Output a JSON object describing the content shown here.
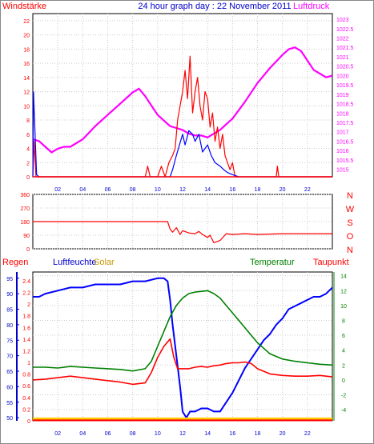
{
  "chart_data": [
    {
      "type": "line",
      "title": "24 hour graph day : 22 November 2011",
      "left_axis_label": "Windstärke",
      "right_axis_label": "Luftdruck",
      "x_ticks": [
        "02",
        "04",
        "06",
        "08",
        "10",
        "12",
        "14",
        "16",
        "18",
        "20",
        "22"
      ],
      "x_range": [
        0,
        24
      ],
      "y_left_ticks": [
        "0",
        "2",
        "4",
        "6",
        "8",
        "10",
        "12",
        "14",
        "16",
        "18",
        "20",
        "22"
      ],
      "y_left_range": [
        0,
        23
      ],
      "y_right_ticks": [
        "1015",
        "1015.5",
        "1016",
        "1016.5",
        "1017",
        "1017.5",
        "1018",
        "1018.5",
        "1019",
        "1019.5",
        "1020",
        "1020.5",
        "1021",
        "1021.5",
        "1022",
        "1022.5",
        "1023"
      ],
      "y_right_range": [
        1014.6,
        1023.3
      ],
      "grid": true,
      "colors": {
        "pressure": "#ff00ff",
        "gust": "#ff0000",
        "wind": "#0000ff"
      },
      "series": [
        {
          "key": "pressure",
          "axis": "right",
          "x": [
            0,
            0.5,
            1,
            1.5,
            2,
            2.5,
            3,
            4,
            5,
            6,
            7,
            8,
            8.5,
            9,
            9.5,
            10,
            10.5,
            11,
            11.5,
            12,
            12.5,
            13,
            13.5,
            14,
            14.5,
            15,
            15.5,
            16,
            17,
            18,
            19,
            20,
            20.5,
            21,
            21.5,
            22,
            22.5,
            23,
            23.5,
            24
          ],
          "y": [
            1016.6,
            1016.5,
            1016.2,
            1015.9,
            1016.1,
            1016.2,
            1016.2,
            1016.6,
            1017.3,
            1017.9,
            1018.5,
            1019.1,
            1019.3,
            1018.9,
            1018.4,
            1017.9,
            1017.6,
            1017.3,
            1017.2,
            1017.1,
            1016.9,
            1016.8,
            1016.8,
            1016.7,
            1016.9,
            1017.1,
            1017.4,
            1017.7,
            1018.6,
            1019.6,
            1020.4,
            1021.1,
            1021.4,
            1021.5,
            1021.3,
            1020.8,
            1020.3,
            1020.1,
            1019.9,
            1020.0
          ]
        },
        {
          "key": "gust",
          "axis": "left",
          "x": [
            0,
            0.1,
            0.25,
            1,
            2,
            4,
            6,
            8,
            9,
            9.2,
            9.4,
            10,
            10.3,
            10.6,
            10.9,
            11.2,
            11.4,
            11.6,
            11.8,
            12,
            12.2,
            12.4,
            12.6,
            12.8,
            13,
            13.2,
            13.4,
            13.6,
            13.8,
            14,
            14.2,
            14.4,
            14.6,
            14.8,
            15,
            15.2,
            15.4,
            15.6,
            15.8,
            16,
            16.2,
            16.5,
            18,
            19.5,
            19.6,
            19.7,
            20,
            22,
            24
          ],
          "y": [
            0,
            5,
            0,
            0,
            0,
            0,
            0,
            0,
            0,
            1.5,
            0,
            0,
            1.5,
            0,
            2,
            3,
            4,
            8,
            10,
            12,
            15,
            11,
            17,
            9,
            12,
            14,
            10,
            8,
            12,
            11,
            7,
            9,
            5,
            7,
            4,
            6,
            3,
            2,
            1,
            2,
            0,
            0,
            0,
            0,
            1.5,
            0,
            0,
            0,
            0
          ]
        },
        {
          "key": "wind",
          "axis": "left",
          "x": [
            0,
            0.05,
            0.3,
            0.5,
            10,
            10.5,
            11,
            11.2,
            11.5,
            12,
            12.2,
            12.5,
            12.8,
            13,
            13.3,
            13.6,
            14,
            14.3,
            14.6,
            15,
            15.3,
            15.6,
            16,
            16.5,
            18,
            24
          ],
          "y": [
            0,
            12,
            0.3,
            0,
            0,
            0,
            0,
            1,
            3,
            6,
            4.5,
            6.5,
            6,
            5,
            6,
            3.5,
            4.5,
            3,
            2,
            1.5,
            1,
            0.6,
            0.3,
            0,
            0,
            0
          ]
        }
      ]
    },
    {
      "type": "line",
      "y_left_ticks": [
        "360",
        "270",
        "180",
        "90",
        "0"
      ],
      "y_left_range": [
        0,
        360
      ],
      "y_right_labels": [
        "N",
        "W",
        "S",
        "O",
        "N"
      ],
      "grid": true,
      "colors": {
        "direction": "#ff0000"
      },
      "series": [
        {
          "key": "direction",
          "axis": "left",
          "x": [
            0,
            10.8,
            11,
            11.2,
            11.5,
            11.8,
            12,
            12.5,
            13,
            13.3,
            13.6,
            14,
            14.2,
            14.5,
            15,
            15.5,
            16,
            17,
            18,
            20,
            22,
            24
          ],
          "y": [
            180,
            180,
            130,
            110,
            140,
            95,
            120,
            105,
            100,
            115,
            95,
            75,
            90,
            40,
            55,
            100,
            95,
            100,
            95,
            100,
            100,
            100
          ]
        }
      ]
    },
    {
      "type": "line",
      "labels": {
        "rain": "Regen",
        "humidity": "Luftfeuchte",
        "solar": "Solar",
        "temperature": "Temperatur",
        "dewpoint": "Taupunkt"
      },
      "y_humidity_ticks": [
        "50",
        "55",
        "60",
        "65",
        "70",
        "75",
        "80",
        "85",
        "90",
        "95"
      ],
      "y_humidity_range": [
        49,
        97
      ],
      "y_rain_ticks": [
        "0",
        "0.2",
        "0.4",
        "0.6",
        "0.8",
        "1",
        "1.2",
        "1.4",
        "1.6",
        "1.8",
        "2",
        "2.2",
        "2.4"
      ],
      "y_rain_range": [
        0,
        2.55
      ],
      "y_temp_ticks": [
        "-4",
        "-2",
        "0",
        "2",
        "4",
        "6",
        "8",
        "10",
        "12",
        "14"
      ],
      "y_temp_range": [
        -5.5,
        14.5
      ],
      "grid": true,
      "colors": {
        "humidity": "#0000ff",
        "temperature": "#008000",
        "dewpoint": "#ff0000",
        "rain": "#ff0000",
        "solar": "#ffcc00"
      },
      "series": [
        {
          "key": "humidity",
          "axis": "humidity",
          "x": [
            0,
            0.5,
            1,
            2,
            3,
            4,
            5,
            6,
            7,
            8,
            9,
            10,
            10.5,
            10.8,
            11,
            11.2,
            11.5,
            11.8,
            12,
            12.3,
            12.6,
            13,
            13.5,
            14,
            14.5,
            15,
            15.5,
            16,
            16.5,
            17,
            17.5,
            18,
            18.5,
            19,
            19.5,
            20,
            20.5,
            21,
            21.5,
            22,
            22.5,
            23,
            23.5,
            24
          ],
          "y": [
            89,
            89,
            90,
            91,
            92,
            92,
            93,
            93,
            93,
            94,
            94,
            95,
            95,
            94,
            88,
            80,
            70,
            60,
            52,
            50,
            52,
            52,
            53,
            53,
            52,
            52,
            55,
            58,
            62,
            66,
            69,
            72,
            75,
            77,
            80,
            82,
            85,
            86,
            87,
            88,
            89,
            89,
            90,
            92
          ]
        },
        {
          "key": "temperature",
          "axis": "temp",
          "x": [
            0,
            1,
            2,
            3,
            4,
            5,
            6,
            7,
            8,
            9,
            9.5,
            10,
            10.5,
            11,
            11.5,
            12,
            12.5,
            13,
            14,
            14.5,
            15,
            15.5,
            16,
            16.5,
            17,
            17.5,
            18,
            19,
            20,
            21,
            22,
            23,
            24
          ],
          "y": [
            1.7,
            1.7,
            1.6,
            1.8,
            1.7,
            1.6,
            1.5,
            1.4,
            1.2,
            1.5,
            2.5,
            4.5,
            6.5,
            8.5,
            10,
            11,
            11.6,
            11.8,
            12,
            11.6,
            11,
            10,
            9,
            8,
            7,
            6,
            5,
            3.5,
            2.8,
            2.5,
            2.3,
            2.1,
            2.0
          ]
        },
        {
          "key": "dewpoint",
          "axis": "temp",
          "x": [
            0,
            1,
            2,
            3,
            4,
            5,
            6,
            7,
            8,
            9,
            9.5,
            10,
            10.5,
            11,
            11.3,
            11.6,
            12,
            12.5,
            13,
            13.5,
            14,
            14.5,
            15,
            15.5,
            16,
            16.5,
            17,
            17.5,
            18,
            19,
            20,
            21,
            22,
            23,
            24
          ],
          "y": [
            0,
            0.1,
            0.3,
            0.5,
            0.3,
            0.1,
            -0.1,
            -0.3,
            -0.6,
            -0.4,
            1,
            3,
            4.5,
            5.5,
            3,
            1.5,
            1.5,
            1.5,
            1.7,
            1.8,
            1.7,
            1.9,
            2,
            2.2,
            2.3,
            2.3,
            2.4,
            2.2,
            1.5,
            0.8,
            0.6,
            0.5,
            0.5,
            0.6,
            0.4
          ]
        },
        {
          "key": "rain",
          "axis": "rain",
          "x": [
            0,
            24
          ],
          "y": [
            0.01,
            0.01
          ]
        },
        {
          "key": "solar",
          "axis": "rain",
          "x": [
            0,
            24
          ],
          "y": [
            0.04,
            0.04
          ]
        }
      ]
    }
  ]
}
